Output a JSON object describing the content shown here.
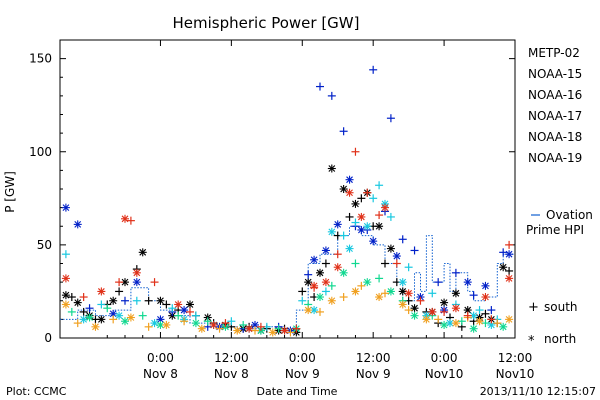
{
  "chart_data": {
    "type": "scatter",
    "title": "Hemispheric Power [GW]",
    "ylabel": "P [GW]",
    "xlabel": "Date and Time",
    "ylim": [
      0,
      160
    ],
    "yticks": [
      0,
      50,
      100,
      150
    ],
    "xlim": [
      -17,
      60
    ],
    "xticks": [
      {
        "h": 0,
        "time": "0:00",
        "date": "Nov 8"
      },
      {
        "h": 12,
        "time": "12:00",
        "date": "Nov 8"
      },
      {
        "h": 24,
        "time": "0:00",
        "date": "Nov 9"
      },
      {
        "h": 36,
        "time": "12:00",
        "date": "Nov 9"
      },
      {
        "h": 48,
        "time": "0:00",
        "date": "Nov10"
      },
      {
        "h": 60,
        "time": "12:00",
        "date": "Nov10"
      }
    ],
    "x_units": "hours since 2013-11-08 00:00 UT",
    "legend_placement": "right",
    "series": [
      {
        "name": "METP-02",
        "color": "#000000",
        "south": [
          [
            -15,
            22
          ],
          [
            -13,
            14
          ],
          [
            -11,
            10
          ],
          [
            -9,
            18
          ],
          [
            -7,
            25
          ],
          [
            -4,
            37
          ],
          [
            -2,
            20
          ],
          [
            1,
            18
          ],
          [
            3,
            15
          ],
          [
            6,
            12
          ],
          [
            9,
            8
          ],
          [
            12,
            6
          ],
          [
            15,
            6
          ],
          [
            18,
            5
          ],
          [
            21,
            5
          ],
          [
            24,
            25
          ],
          [
            26,
            22
          ],
          [
            28,
            40
          ],
          [
            30,
            55
          ],
          [
            32,
            65
          ],
          [
            34,
            75
          ],
          [
            36,
            60
          ],
          [
            38,
            40
          ],
          [
            40,
            30
          ],
          [
            42,
            20
          ],
          [
            45,
            14
          ],
          [
            47,
            8
          ],
          [
            49,
            11
          ],
          [
            51,
            6
          ],
          [
            53,
            9
          ],
          [
            55,
            13
          ],
          [
            57,
            8
          ],
          [
            59,
            36
          ]
        ],
        "north": [
          [
            -16,
            23
          ],
          [
            -14,
            19
          ],
          [
            -12,
            12
          ],
          [
            -10,
            10
          ],
          [
            -8,
            20
          ],
          [
            -6,
            30
          ],
          [
            -3,
            46
          ],
          [
            0,
            20
          ],
          [
            2,
            12
          ],
          [
            5,
            18
          ],
          [
            8,
            11
          ],
          [
            11,
            7
          ],
          [
            14,
            5
          ],
          [
            17,
            4
          ],
          [
            20,
            4
          ],
          [
            23,
            3
          ],
          [
            25,
            30
          ],
          [
            27,
            35
          ],
          [
            29,
            91
          ],
          [
            31,
            80
          ],
          [
            33,
            72
          ],
          [
            35,
            78
          ],
          [
            37,
            60
          ],
          [
            39,
            48
          ],
          [
            41,
            25
          ],
          [
            43,
            16
          ],
          [
            46,
            14
          ],
          [
            48,
            19
          ],
          [
            50,
            24
          ],
          [
            52,
            15
          ],
          [
            54,
            11
          ],
          [
            56,
            10
          ],
          [
            58,
            38
          ]
        ]
      },
      {
        "name": "NOAA-15",
        "color": "#0020c8",
        "south": [
          [
            -12,
            16
          ],
          [
            -6,
            20
          ],
          [
            2,
            14
          ],
          [
            8,
            6
          ],
          [
            14,
            5
          ],
          [
            20,
            6
          ],
          [
            25,
            34
          ],
          [
            27,
            135
          ],
          [
            29,
            130
          ],
          [
            31,
            111
          ],
          [
            33,
            60
          ],
          [
            35,
            58
          ],
          [
            36,
            144
          ],
          [
            38,
            68
          ],
          [
            39,
            118
          ],
          [
            41,
            53
          ],
          [
            43,
            47
          ],
          [
            47,
            30
          ],
          [
            50,
            35
          ],
          [
            53,
            23
          ],
          [
            56,
            15
          ],
          [
            58,
            46
          ]
        ],
        "north": [
          [
            -16,
            70
          ],
          [
            -14,
            61
          ],
          [
            -8,
            13
          ],
          [
            -4,
            30
          ],
          [
            0,
            10
          ],
          [
            4,
            15
          ],
          [
            10,
            6
          ],
          [
            16,
            7
          ],
          [
            22,
            4
          ],
          [
            26,
            42
          ],
          [
            28,
            47
          ],
          [
            30,
            61
          ],
          [
            32,
            85
          ],
          [
            34,
            58
          ],
          [
            36,
            52
          ],
          [
            40,
            44
          ],
          [
            44,
            22
          ],
          [
            48,
            15
          ],
          [
            52,
            30
          ],
          [
            55,
            28
          ],
          [
            59,
            45
          ]
        ]
      },
      {
        "name": "NOAA-16",
        "color": "#18c8e0",
        "south": [
          [
            -16,
            45
          ],
          [
            -10,
            18
          ],
          [
            -4,
            20
          ],
          [
            2,
            16
          ],
          [
            6,
            12
          ],
          [
            12,
            9
          ],
          [
            18,
            6
          ],
          [
            24,
            20
          ],
          [
            28,
            25
          ],
          [
            31,
            55
          ],
          [
            33,
            62
          ],
          [
            36,
            75
          ],
          [
            37,
            82
          ],
          [
            39,
            65
          ],
          [
            42,
            38
          ],
          [
            46,
            24
          ],
          [
            50,
            18
          ],
          [
            54,
            15
          ],
          [
            57,
            10
          ]
        ],
        "north": [
          [
            -13,
            10
          ],
          [
            -7,
            12
          ],
          [
            -1,
            8
          ],
          [
            4,
            10
          ],
          [
            9,
            7
          ],
          [
            15,
            5
          ],
          [
            21,
            4
          ],
          [
            26,
            15
          ],
          [
            29,
            57
          ],
          [
            32,
            48
          ],
          [
            35,
            60
          ],
          [
            38,
            72
          ],
          [
            41,
            30
          ],
          [
            45,
            12
          ],
          [
            49,
            8
          ],
          [
            53,
            12
          ],
          [
            56,
            7
          ]
        ]
      },
      {
        "name": "NOAA-17",
        "color": "#10d890",
        "south": [
          [
            -15,
            14
          ],
          [
            -9,
            16
          ],
          [
            -3,
            12
          ],
          [
            3,
            12
          ],
          [
            8,
            9
          ],
          [
            14,
            7
          ],
          [
            20,
            5
          ],
          [
            25,
            18
          ],
          [
            29,
            28
          ],
          [
            33,
            40
          ],
          [
            37,
            32
          ],
          [
            41,
            20
          ],
          [
            46,
            12
          ],
          [
            51,
            9
          ],
          [
            55,
            8
          ]
        ],
        "north": [
          [
            -12,
            11
          ],
          [
            -6,
            9
          ],
          [
            0,
            7
          ],
          [
            6,
            8
          ],
          [
            11,
            6
          ],
          [
            17,
            4
          ],
          [
            23,
            5
          ],
          [
            27,
            22
          ],
          [
            31,
            35
          ],
          [
            35,
            30
          ],
          [
            39,
            25
          ],
          [
            43,
            12
          ],
          [
            48,
            7
          ],
          [
            53,
            5
          ],
          [
            58,
            6
          ]
        ]
      },
      {
        "name": "NOAA-18",
        "color": "#f0a020",
        "south": [
          [
            -14,
            8
          ],
          [
            -8,
            10
          ],
          [
            -2,
            6
          ],
          [
            4,
            9
          ],
          [
            10,
            5
          ],
          [
            16,
            4
          ],
          [
            22,
            3
          ],
          [
            27,
            14
          ],
          [
            31,
            22
          ],
          [
            34,
            28
          ],
          [
            38,
            24
          ],
          [
            42,
            15
          ],
          [
            47,
            10
          ],
          [
            52,
            11
          ],
          [
            57,
            8
          ]
        ],
        "north": [
          [
            -16,
            18
          ],
          [
            -11,
            6
          ],
          [
            -5,
            11
          ],
          [
            1,
            7
          ],
          [
            7,
            5
          ],
          [
            13,
            4
          ],
          [
            19,
            3
          ],
          [
            25,
            15
          ],
          [
            29,
            20
          ],
          [
            33,
            25
          ],
          [
            37,
            22
          ],
          [
            41,
            18
          ],
          [
            45,
            10
          ],
          [
            50,
            8
          ],
          [
            54,
            9
          ],
          [
            59,
            10
          ]
        ]
      },
      {
        "name": "NOAA-19",
        "color": "#e03018",
        "south": [
          [
            -13,
            22
          ],
          [
            -7,
            30
          ],
          [
            -5,
            63
          ],
          [
            -1,
            30
          ],
          [
            5,
            14
          ],
          [
            11,
            8
          ],
          [
            17,
            6
          ],
          [
            23,
            5
          ],
          [
            26,
            27
          ],
          [
            30,
            45
          ],
          [
            33,
            100
          ],
          [
            35,
            78
          ],
          [
            37,
            66
          ],
          [
            40,
            40
          ],
          [
            44,
            20
          ],
          [
            48,
            14
          ],
          [
            52,
            12
          ],
          [
            56,
            10
          ],
          [
            59,
            50
          ]
        ],
        "north": [
          [
            -16,
            32
          ],
          [
            -10,
            25
          ],
          [
            -4,
            35
          ],
          [
            -6,
            64
          ],
          [
            3,
            18
          ],
          [
            9,
            7
          ],
          [
            15,
            5
          ],
          [
            21,
            4
          ],
          [
            26,
            28
          ],
          [
            28,
            30
          ],
          [
            30,
            38
          ],
          [
            32,
            78
          ],
          [
            34,
            65
          ],
          [
            38,
            70
          ],
          [
            42,
            24
          ],
          [
            46,
            14
          ],
          [
            50,
            16
          ],
          [
            55,
            22
          ],
          [
            59,
            32
          ]
        ]
      }
    ],
    "ovation": {
      "name": "Ovation Prime HPI",
      "color": "#1060d0",
      "steps": [
        [
          -17,
          10
        ],
        [
          -14,
          10
        ],
        [
          -14,
          15
        ],
        [
          -11,
          15
        ],
        [
          -11,
          12
        ],
        [
          -8,
          12
        ],
        [
          -8,
          15
        ],
        [
          -5,
          15
        ],
        [
          -5,
          27
        ],
        [
          -2,
          27
        ],
        [
          -2,
          20
        ],
        [
          0,
          20
        ],
        [
          0,
          15
        ],
        [
          2,
          15
        ],
        [
          2,
          12
        ],
        [
          5,
          12
        ],
        [
          5,
          8
        ],
        [
          9,
          8
        ],
        [
          9,
          6
        ],
        [
          13,
          6
        ],
        [
          13,
          5
        ],
        [
          18,
          5
        ],
        [
          18,
          6
        ],
        [
          21,
          6
        ],
        [
          21,
          5
        ],
        [
          23,
          5
        ],
        [
          23,
          15
        ],
        [
          25,
          15
        ],
        [
          25,
          40
        ],
        [
          27,
          40
        ],
        [
          27,
          45
        ],
        [
          30,
          45
        ],
        [
          30,
          55
        ],
        [
          32,
          55
        ],
        [
          32,
          60
        ],
        [
          34,
          60
        ],
        [
          34,
          55
        ],
        [
          36,
          55
        ],
        [
          36,
          50
        ],
        [
          38,
          50
        ],
        [
          38,
          40
        ],
        [
          40,
          40
        ],
        [
          40,
          30
        ],
        [
          41,
          30
        ],
        [
          41,
          20
        ],
        [
          43,
          20
        ],
        [
          43,
          35
        ],
        [
          44,
          35
        ],
        [
          44,
          25
        ],
        [
          45,
          25
        ],
        [
          45,
          55
        ],
        [
          46,
          55
        ],
        [
          46,
          30
        ],
        [
          48,
          30
        ],
        [
          48,
          40
        ],
        [
          49,
          40
        ],
        [
          49,
          25
        ],
        [
          50,
          25
        ],
        [
          50,
          35
        ],
        [
          52,
          35
        ],
        [
          52,
          25
        ],
        [
          53,
          25
        ],
        [
          53,
          20
        ],
        [
          55,
          20
        ],
        [
          55,
          22
        ],
        [
          57,
          22
        ],
        [
          57,
          40
        ],
        [
          58,
          40
        ],
        [
          58,
          45
        ],
        [
          60,
          45
        ]
      ]
    },
    "symbols_legend": {
      "south": "south",
      "north": "north",
      "south_glyph": "+",
      "north_glyph": "*"
    }
  },
  "footer": {
    "left": "Plot: CCMC",
    "center": "Date and Time",
    "right": "2013/11/10 12:15:07"
  }
}
